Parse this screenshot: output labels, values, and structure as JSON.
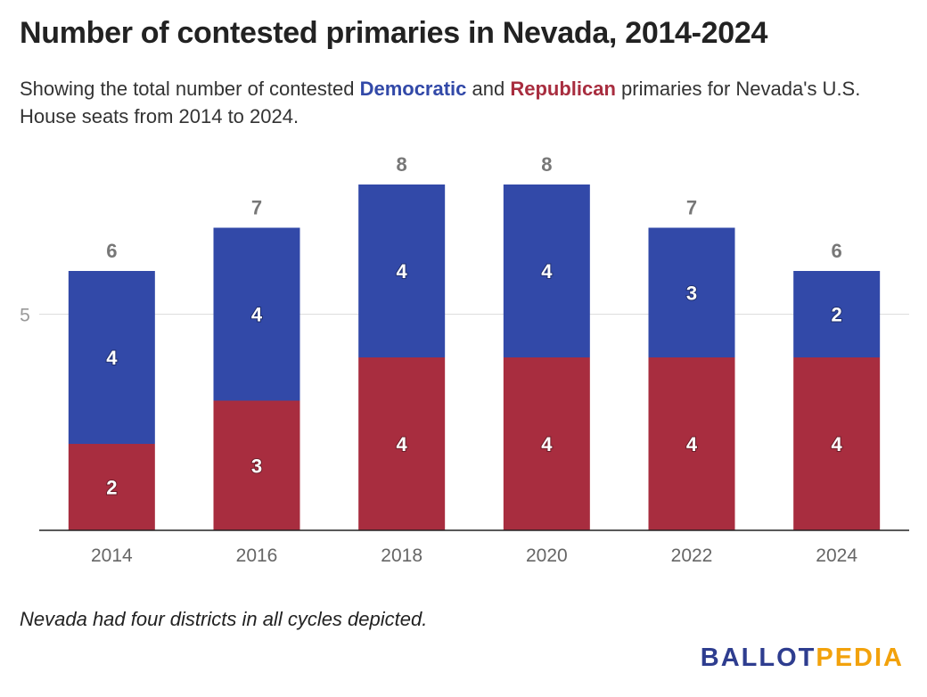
{
  "title": "Number of contested primaries in Nevada, 2014-2024",
  "subtitle": {
    "part1": "Showing the total number of contested ",
    "dem": "Democratic",
    "part2": " and ",
    "rep": "Republican",
    "part3": " primaries for Nevada's U.S. House seats from 2014 to 2024."
  },
  "note": "Nevada had four districts in all cycles depicted.",
  "logo": {
    "part1": "BALLOT",
    "part2": "PEDIA"
  },
  "colors": {
    "democratic": "#3249a8",
    "republican": "#a82d3f",
    "total_label": "#777777",
    "axis": "#222222",
    "grid": "#dddddd"
  },
  "chart_data": {
    "type": "bar",
    "stacked": true,
    "categories": [
      "2014",
      "2016",
      "2018",
      "2020",
      "2022",
      "2024"
    ],
    "series": [
      {
        "name": "Republican",
        "values": [
          2,
          3,
          4,
          4,
          4,
          4
        ],
        "color": "#a82d3f"
      },
      {
        "name": "Democratic",
        "values": [
          4,
          4,
          4,
          4,
          3,
          2
        ],
        "color": "#3249a8"
      }
    ],
    "totals": [
      6,
      7,
      8,
      8,
      7,
      6
    ],
    "ylim": [
      0,
      8
    ],
    "yticks": [
      5
    ],
    "xlabel": "",
    "ylabel": "",
    "grid": true,
    "legend": "none"
  }
}
